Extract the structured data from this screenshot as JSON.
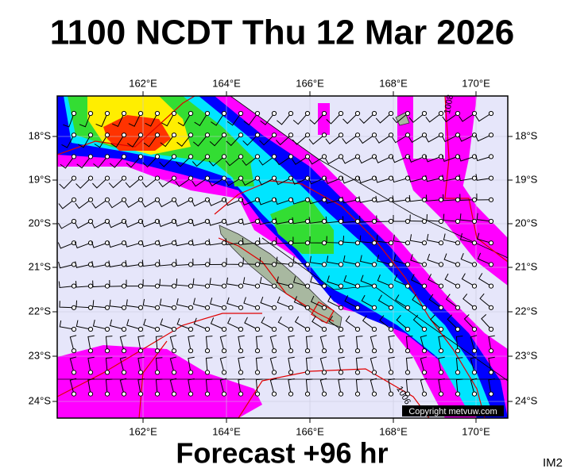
{
  "header": {
    "title": "1100 NCDT Thu 12 Mar 2026"
  },
  "map": {
    "lon_labels": [
      "162°E",
      "164°E",
      "166°E",
      "168°E",
      "170°E"
    ],
    "lat_labels": [
      "18°S",
      "19°S",
      "20°S",
      "21°S",
      "22°S",
      "23°S",
      "24°S"
    ],
    "contour_labels": [
      "1008",
      "1006"
    ],
    "copyright": "Copyright metvuw.com"
  },
  "footer": {
    "forecast": "Forecast +96 hr",
    "image_id": "IM2"
  }
}
